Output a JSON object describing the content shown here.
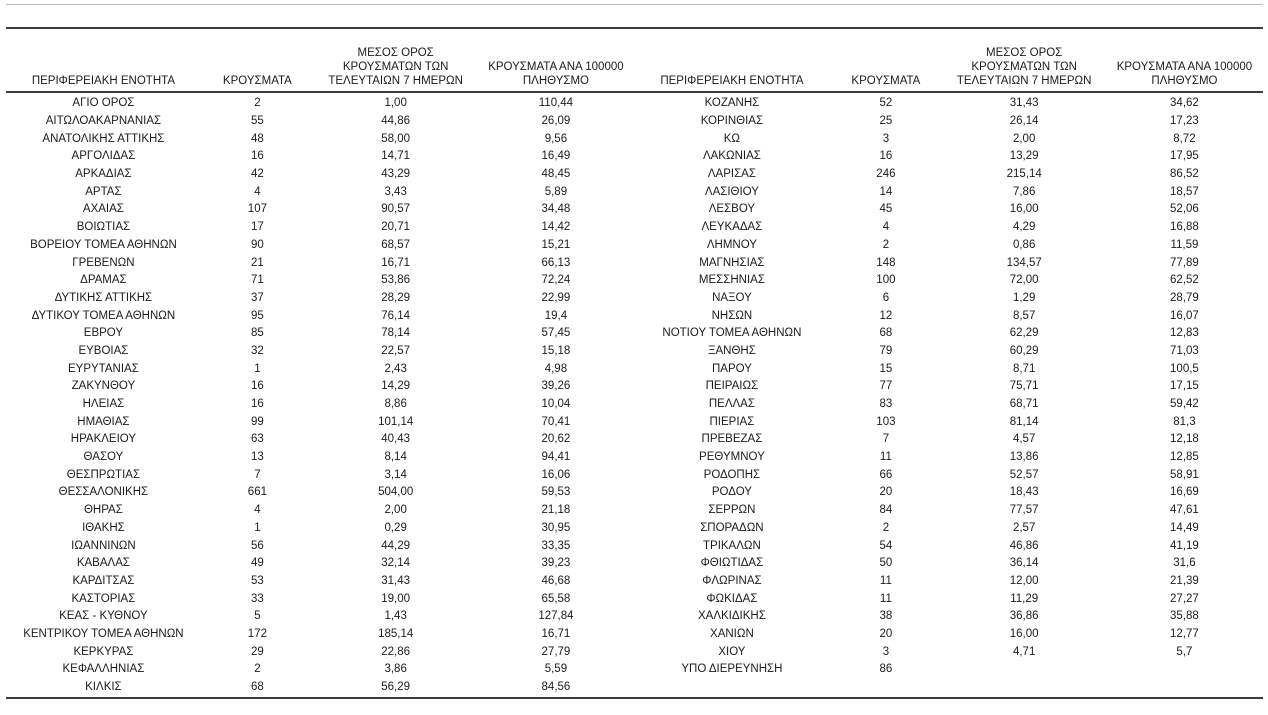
{
  "page": {
    "background": "#ffffff",
    "text_color": "#1c1c1c",
    "rule_dark_color": "#3d3d3d",
    "rule_light_color": "#bdbdbd"
  },
  "table": {
    "column_headers": {
      "region": "ΠΕΡΙΦΕΡΕΙΑΚΗ ΕΝΟΤΗΤΑ",
      "cases": "ΚΡΟΥΣΜΑΤΑ",
      "avg7day": "ΜΕΣΟΣ ΟΡΟΣ\nΚΡΟΥΣΜΑΤΩΝ ΤΩΝ\nΤΕΛΕΥΤΑΙΩΝ 7 ΗΜΕΡΩΝ",
      "per100k": "ΚΡΟΥΣΜΑΤΑ ΑΝΑ 100000\nΠΛΗΘΥΣΜΟ"
    },
    "left_rows": [
      [
        "ΑΓΙΟ ΟΡΟΣ",
        "2",
        "1,00",
        "110,44"
      ],
      [
        "ΑΙΤΩΛΟΑΚΑΡΝΑΝΙΑΣ",
        "55",
        "44,86",
        "26,09"
      ],
      [
        "ΑΝΑΤΟΛΙΚΗΣ ΑΤΤΙΚΗΣ",
        "48",
        "58,00",
        "9,56"
      ],
      [
        "ΑΡΓΟΛΙΔΑΣ",
        "16",
        "14,71",
        "16,49"
      ],
      [
        "ΑΡΚΑΔΙΑΣ",
        "42",
        "43,29",
        "48,45"
      ],
      [
        "ΑΡΤΑΣ",
        "4",
        "3,43",
        "5,89"
      ],
      [
        "ΑΧΑΪΑΣ",
        "107",
        "90,57",
        "34,48"
      ],
      [
        "ΒΟΙΩΤΙΑΣ",
        "17",
        "20,71",
        "14,42"
      ],
      [
        "ΒΟΡΕΙΟΥ ΤΟΜΕΑ ΑΘΗΝΩΝ",
        "90",
        "68,57",
        "15,21"
      ],
      [
        "ΓΡΕΒΕΝΩΝ",
        "21",
        "16,71",
        "66,13"
      ],
      [
        "ΔΡΑΜΑΣ",
        "71",
        "53,86",
        "72,24"
      ],
      [
        "ΔΥΤΙΚΗΣ ΑΤΤΙΚΗΣ",
        "37",
        "28,29",
        "22,99"
      ],
      [
        "ΔΥΤΙΚΟΥ ΤΟΜΕΑ ΑΘΗΝΩΝ",
        "95",
        "76,14",
        "19,4"
      ],
      [
        "ΕΒΡΟΥ",
        "85",
        "78,14",
        "57,45"
      ],
      [
        "ΕΥΒΟΙΑΣ",
        "32",
        "22,57",
        "15,18"
      ],
      [
        "ΕΥΡΥΤΑΝΙΑΣ",
        "1",
        "2,43",
        "4,98"
      ],
      [
        "ΖΑΚΥΝΘΟΥ",
        "16",
        "14,29",
        "39,26"
      ],
      [
        "ΗΛΕΙΑΣ",
        "16",
        "8,86",
        "10,04"
      ],
      [
        "ΗΜΑΘΙΑΣ",
        "99",
        "101,14",
        "70,41"
      ],
      [
        "ΗΡΑΚΛΕΙΟΥ",
        "63",
        "40,43",
        "20,62"
      ],
      [
        "ΘΑΣΟΥ",
        "13",
        "8,14",
        "94,41"
      ],
      [
        "ΘΕΣΠΡΩΤΙΑΣ",
        "7",
        "3,14",
        "16,06"
      ],
      [
        "ΘΕΣΣΑΛΟΝΙΚΗΣ",
        "661",
        "504,00",
        "59,53"
      ],
      [
        "ΘΗΡΑΣ",
        "4",
        "2,00",
        "21,18"
      ],
      [
        "ΙΘΑΚΗΣ",
        "1",
        "0,29",
        "30,95"
      ],
      [
        "ΙΩΑΝΝΙΝΩΝ",
        "56",
        "44,29",
        "33,35"
      ],
      [
        "ΚΑΒΑΛΑΣ",
        "49",
        "32,14",
        "39,23"
      ],
      [
        "ΚΑΡΔΙΤΣΑΣ",
        "53",
        "31,43",
        "46,68"
      ],
      [
        "ΚΑΣΤΟΡΙΑΣ",
        "33",
        "19,00",
        "65,58"
      ],
      [
        "ΚΕΑΣ - ΚΥΘΝΟΥ",
        "5",
        "1,43",
        "127,84"
      ],
      [
        "ΚΕΝΤΡΙΚΟΥ ΤΟΜΕΑ ΑΘΗΝΩΝ",
        "172",
        "185,14",
        "16,71"
      ],
      [
        "ΚΕΡΚΥΡΑΣ",
        "29",
        "22,86",
        "27,79"
      ],
      [
        "ΚΕΦΑΛΛΗΝΙΑΣ",
        "2",
        "3,86",
        "5,59"
      ],
      [
        "ΚΙΛΚΙΣ",
        "68",
        "56,29",
        "84,56"
      ]
    ],
    "right_rows": [
      [
        "ΚΟΖΑΝΗΣ",
        "52",
        "31,43",
        "34,62"
      ],
      [
        "ΚΟΡΙΝΘΙΑΣ",
        "25",
        "26,14",
        "17,23"
      ],
      [
        "ΚΩ",
        "3",
        "2,00",
        "8,72"
      ],
      [
        "ΛΑΚΩΝΙΑΣ",
        "16",
        "13,29",
        "17,95"
      ],
      [
        "ΛΑΡΙΣΑΣ",
        "246",
        "215,14",
        "86,52"
      ],
      [
        "ΛΑΣΙΘΙΟΥ",
        "14",
        "7,86",
        "18,57"
      ],
      [
        "ΛΕΣΒΟΥ",
        "45",
        "16,00",
        "52,06"
      ],
      [
        "ΛΕΥΚΑΔΑΣ",
        "4",
        "4,29",
        "16,88"
      ],
      [
        "ΛΗΜΝΟΥ",
        "2",
        "0,86",
        "11,59"
      ],
      [
        "ΜΑΓΝΗΣΙΑΣ",
        "148",
        "134,57",
        "77,89"
      ],
      [
        "ΜΕΣΣΗΝΙΑΣ",
        "100",
        "72,00",
        "62,52"
      ],
      [
        "ΝΑΞΟΥ",
        "6",
        "1,29",
        "28,79"
      ],
      [
        "ΝΗΣΩΝ",
        "12",
        "8,57",
        "16,07"
      ],
      [
        "ΝΟΤΙΟΥ ΤΟΜΕΑ ΑΘΗΝΩΝ",
        "68",
        "62,29",
        "12,83"
      ],
      [
        "ΞΑΝΘΗΣ",
        "79",
        "60,29",
        "71,03"
      ],
      [
        "ΠΑΡΟΥ",
        "15",
        "8,71",
        "100,5"
      ],
      [
        "ΠΕΙΡΑΙΩΣ",
        "77",
        "75,71",
        "17,15"
      ],
      [
        "ΠΕΛΛΑΣ",
        "83",
        "68,71",
        "59,42"
      ],
      [
        "ΠΙΕΡΙΑΣ",
        "103",
        "81,14",
        "81,3"
      ],
      [
        "ΠΡΕΒΕΖΑΣ",
        "7",
        "4,57",
        "12,18"
      ],
      [
        "ΡΕΘΥΜΝΟΥ",
        "11",
        "13,86",
        "12,85"
      ],
      [
        "ΡΟΔΟΠΗΣ",
        "66",
        "52,57",
        "58,91"
      ],
      [
        "ΡΟΔΟΥ",
        "20",
        "18,43",
        "16,69"
      ],
      [
        "ΣΕΡΡΩΝ",
        "84",
        "77,57",
        "47,61"
      ],
      [
        "ΣΠΟΡΑΔΩΝ",
        "2",
        "2,57",
        "14,49"
      ],
      [
        "ΤΡΙΚΑΛΩΝ",
        "54",
        "46,86",
        "41,19"
      ],
      [
        "ΦΘΙΩΤΙΔΑΣ",
        "50",
        "36,14",
        "31,6"
      ],
      [
        "ΦΛΩΡΙΝΑΣ",
        "11",
        "12,00",
        "21,39"
      ],
      [
        "ΦΩΚΙΔΑΣ",
        "11",
        "11,29",
        "27,27"
      ],
      [
        "ΧΑΛΚΙΔΙΚΗΣ",
        "38",
        "36,86",
        "35,88"
      ],
      [
        "ΧΑΝΙΩΝ",
        "20",
        "16,00",
        "12,77"
      ],
      [
        "ΧΙΟΥ",
        "3",
        "4,71",
        "5,7"
      ],
      [
        "ΥΠΟ ΔΙΕΡΕΥΝΗΣΗ",
        "86",
        "",
        ""
      ]
    ]
  }
}
